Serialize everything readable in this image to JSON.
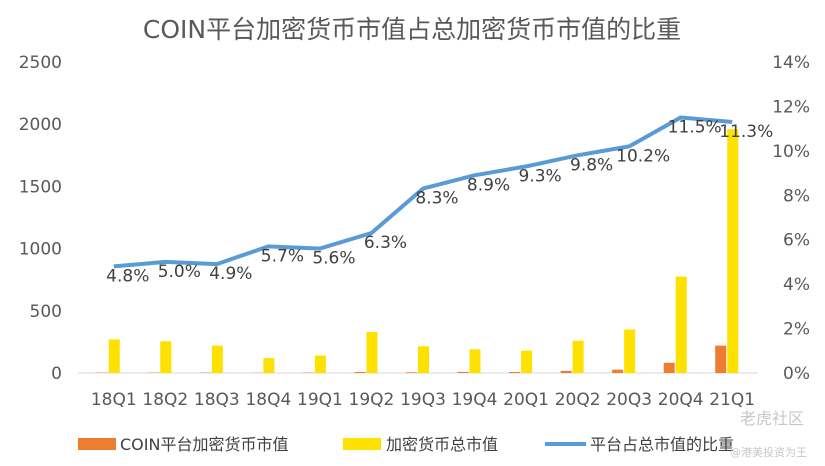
{
  "chart_data": {
    "type": "bar+line",
    "title": "COIN平台加密货币市值占总加密货币市值的比重",
    "categories": [
      "18Q1",
      "18Q2",
      "18Q3",
      "18Q4",
      "19Q1",
      "19Q2",
      "19Q3",
      "19Q4",
      "20Q1",
      "20Q2",
      "20Q3",
      "20Q4",
      "21Q1"
    ],
    "series": [
      {
        "name": "COIN平台加密货币市值",
        "type": "bar",
        "axis": "left",
        "color": "#ED7D31",
        "values": [
          3,
          3,
          3,
          2,
          3,
          8,
          6,
          9,
          8,
          17,
          27,
          82,
          220
        ]
      },
      {
        "name": "加密货币总市值",
        "type": "bar",
        "axis": "left",
        "color": "#FFE100",
        "values": [
          270,
          255,
          220,
          120,
          140,
          330,
          215,
          190,
          180,
          260,
          350,
          775,
          1960
        ]
      },
      {
        "name": "平台占总市值的比重",
        "type": "line",
        "axis": "right",
        "color": "#5B9BD5",
        "values": [
          4.8,
          5.0,
          4.9,
          5.7,
          5.6,
          6.3,
          8.3,
          8.9,
          9.3,
          9.8,
          10.2,
          11.5,
          11.3
        ],
        "labels": [
          "4.8%",
          "5.0%",
          "4.9%",
          "5.7%",
          "5.6%",
          "6.3%",
          "8.3%",
          "8.9%",
          "9.3%",
          "9.8%",
          "10.2%",
          "11.5%",
          "11.3%"
        ]
      }
    ],
    "y_left": {
      "min": 0,
      "max": 2500,
      "ticks": [
        "0",
        "500",
        "1000",
        "1500",
        "2000",
        "2500"
      ]
    },
    "y_right": {
      "min": 0,
      "max": 14,
      "ticks": [
        "0%",
        "2%",
        "4%",
        "6%",
        "8%",
        "10%",
        "12%",
        "14%"
      ]
    },
    "grid": false,
    "legend_position": "bottom"
  },
  "watermark": {
    "brand": "老虎社区",
    "handle": "@港美投资为王"
  }
}
